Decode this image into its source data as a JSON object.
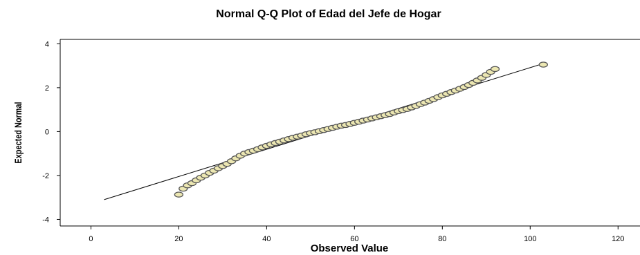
{
  "chart_data": {
    "type": "scatter",
    "title": "Normal Q-Q Plot of Edad del Jefe de Hogar",
    "xlabel": "Observed Value",
    "ylabel": "Expected Normal",
    "xlim": [
      -7,
      125
    ],
    "ylim": [
      -4.3,
      4.2
    ],
    "xticks": [
      0,
      20,
      40,
      60,
      80,
      100,
      120
    ],
    "yticks": [
      -4,
      -2,
      0,
      2,
      4
    ],
    "grid": false,
    "legend": "none",
    "colors": {
      "marker_fill": "#ece7b2",
      "marker_stroke": "#555555",
      "line": "#000000",
      "axis": "#000000"
    },
    "reference_line": {
      "x": [
        3,
        103
      ],
      "y": [
        -3.1,
        3.1
      ]
    },
    "points": {
      "x": [
        20,
        21,
        22,
        23,
        24,
        25,
        26,
        27,
        28,
        29,
        30,
        31,
        32,
        33,
        34,
        35,
        36,
        37,
        38,
        39,
        40,
        41,
        42,
        43,
        44,
        45,
        46,
        47,
        48,
        49,
        50,
        51,
        52,
        53,
        54,
        55,
        56,
        57,
        58,
        59,
        60,
        61,
        62,
        63,
        64,
        65,
        66,
        67,
        68,
        69,
        70,
        71,
        72,
        73,
        74,
        75,
        76,
        77,
        78,
        79,
        80,
        81,
        82,
        83,
        84,
        85,
        86,
        87,
        88,
        89,
        90,
        91,
        92,
        103
      ],
      "y": [
        -2.87,
        -2.6,
        -2.45,
        -2.35,
        -2.22,
        -2.1,
        -2.0,
        -1.88,
        -1.78,
        -1.67,
        -1.57,
        -1.47,
        -1.35,
        -1.22,
        -1.1,
        -1.0,
        -0.93,
        -0.87,
        -0.8,
        -0.72,
        -0.65,
        -0.58,
        -0.52,
        -0.46,
        -0.4,
        -0.34,
        -0.28,
        -0.23,
        -0.18,
        -0.12,
        -0.07,
        -0.03,
        0.02,
        0.07,
        0.12,
        0.17,
        0.22,
        0.27,
        0.3,
        0.35,
        0.4,
        0.45,
        0.5,
        0.55,
        0.6,
        0.65,
        0.7,
        0.75,
        0.8,
        0.87,
        0.93,
        0.98,
        1.03,
        1.1,
        1.17,
        1.25,
        1.32,
        1.4,
        1.48,
        1.57,
        1.65,
        1.72,
        1.8,
        1.87,
        1.95,
        2.03,
        2.12,
        2.22,
        2.33,
        2.45,
        2.58,
        2.72,
        2.85,
        3.05
      ]
    }
  }
}
